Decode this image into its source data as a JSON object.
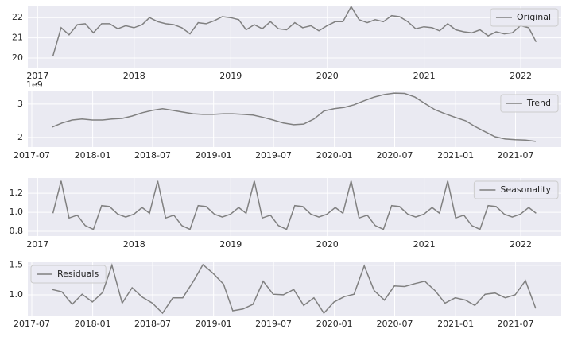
{
  "chart_data": [
    {
      "type": "line",
      "grid": true,
      "legend": "upper right",
      "x": [
        "2017-02",
        "2017-03",
        "2017-04",
        "2017-05",
        "2017-06",
        "2017-07",
        "2017-08",
        "2017-09",
        "2017-10",
        "2017-11",
        "2017-12",
        "2018-01",
        "2018-02",
        "2018-03",
        "2018-04",
        "2018-05",
        "2018-06",
        "2018-07",
        "2018-08",
        "2018-09",
        "2018-10",
        "2018-11",
        "2018-12",
        "2019-01",
        "2019-02",
        "2019-03",
        "2019-04",
        "2019-05",
        "2019-06",
        "2019-07",
        "2019-08",
        "2019-09",
        "2019-10",
        "2019-11",
        "2019-12",
        "2020-01",
        "2020-02",
        "2020-03",
        "2020-04",
        "2020-05",
        "2020-06",
        "2020-07",
        "2020-08",
        "2020-09",
        "2020-10",
        "2020-11",
        "2020-12",
        "2021-01",
        "2021-02",
        "2021-03",
        "2021-04",
        "2021-05",
        "2021-06",
        "2021-07",
        "2021-08",
        "2021-09",
        "2021-10",
        "2021-11",
        "2021-12",
        "2022-01",
        "2022-02"
      ],
      "series": [
        {
          "name": "Original",
          "color": "#808080",
          "values": [
            20.1,
            21.5,
            21.15,
            21.65,
            21.7,
            21.25,
            21.7,
            21.7,
            21.45,
            21.6,
            21.5,
            21.65,
            22.0,
            21.8,
            21.7,
            21.65,
            21.5,
            21.2,
            21.75,
            21.7,
            21.85,
            22.05,
            22.0,
            21.9,
            21.4,
            21.65,
            21.45,
            21.8,
            21.45,
            21.4,
            21.75,
            21.5,
            21.6,
            21.35,
            21.6,
            21.8,
            21.8,
            22.55,
            21.9,
            21.75,
            21.9,
            21.8,
            22.1,
            22.05,
            21.8,
            21.45,
            21.55,
            21.5,
            21.35,
            21.7,
            21.4,
            21.3,
            21.25,
            21.4,
            21.1,
            21.3,
            21.2,
            21.25,
            21.6,
            21.5,
            20.8
          ]
        }
      ],
      "xlim": [
        "2016-11-25",
        "2022-06-03"
      ],
      "xticks": [
        {
          "value": "2017-01",
          "label": "2017"
        },
        {
          "value": "2018-01",
          "label": "2018"
        },
        {
          "value": "2019-01",
          "label": "2019"
        },
        {
          "value": "2020-01",
          "label": "2020"
        },
        {
          "value": "2021-01",
          "label": "2021"
        },
        {
          "value": "2022-01",
          "label": "2022"
        }
      ],
      "ylim": [
        19.53,
        22.6
      ],
      "yticks": [
        20,
        21,
        22
      ]
    },
    {
      "type": "line",
      "grid": true,
      "legend": "upper right",
      "y_offset_label": "1e9",
      "x": [
        "2017-08",
        "2017-09",
        "2017-10",
        "2017-11",
        "2017-12",
        "2018-01",
        "2018-02",
        "2018-03",
        "2018-04",
        "2018-05",
        "2018-06",
        "2018-07",
        "2018-08",
        "2018-09",
        "2018-10",
        "2018-11",
        "2018-12",
        "2019-01",
        "2019-02",
        "2019-03",
        "2019-04",
        "2019-05",
        "2019-06",
        "2019-07",
        "2019-08",
        "2019-09",
        "2019-10",
        "2019-11",
        "2019-12",
        "2020-01",
        "2020-02",
        "2020-03",
        "2020-04",
        "2020-05",
        "2020-06",
        "2020-07",
        "2020-08",
        "2020-09",
        "2020-10",
        "2020-11",
        "2020-12",
        "2021-01",
        "2021-02",
        "2021-03",
        "2021-04",
        "2021-05",
        "2021-06",
        "2021-07",
        "2021-08"
      ],
      "series": [
        {
          "name": "Trend",
          "color": "#808080",
          "values": [
            2.31,
            2.43,
            2.52,
            2.55,
            2.52,
            2.52,
            2.55,
            2.57,
            2.64,
            2.74,
            2.81,
            2.86,
            2.81,
            2.76,
            2.71,
            2.69,
            2.69,
            2.71,
            2.71,
            2.69,
            2.67,
            2.6,
            2.52,
            2.43,
            2.38,
            2.4,
            2.55,
            2.79,
            2.86,
            2.9,
            2.98,
            3.1,
            3.21,
            3.29,
            3.33,
            3.32,
            3.21,
            3.02,
            2.83,
            2.71,
            2.6,
            2.5,
            2.33,
            2.17,
            2.02,
            1.95,
            1.93,
            1.92,
            1.88
          ]
        }
      ],
      "xlim": [
        "2017-06-19",
        "2021-11-16"
      ],
      "xticks": [
        "2017-07",
        "2018-01",
        "2018-07",
        "2019-01",
        "2019-07",
        "2020-01",
        "2020-07",
        "2021-01",
        "2021-07"
      ],
      "ylim": [
        1.71,
        3.38
      ],
      "yticks": [
        2,
        3
      ]
    },
    {
      "type": "line",
      "grid": true,
      "legend": "upper right",
      "x": [
        "2017-02",
        "2017-03",
        "2017-04",
        "2017-05",
        "2017-06",
        "2017-07",
        "2017-08",
        "2017-09",
        "2017-10",
        "2017-11",
        "2017-12",
        "2018-01",
        "2018-02",
        "2018-03",
        "2018-04",
        "2018-05",
        "2018-06",
        "2018-07",
        "2018-08",
        "2018-09",
        "2018-10",
        "2018-11",
        "2018-12",
        "2019-01",
        "2019-02",
        "2019-03",
        "2019-04",
        "2019-05",
        "2019-06",
        "2019-07",
        "2019-08",
        "2019-09",
        "2019-10",
        "2019-11",
        "2019-12",
        "2020-01",
        "2020-02",
        "2020-03",
        "2020-04",
        "2020-05",
        "2020-06",
        "2020-07",
        "2020-08",
        "2020-09",
        "2020-10",
        "2020-11",
        "2020-12",
        "2021-01",
        "2021-02",
        "2021-03",
        "2021-04",
        "2021-05",
        "2021-06",
        "2021-07",
        "2021-08",
        "2021-09",
        "2021-10",
        "2021-11",
        "2021-12",
        "2022-01",
        "2022-02"
      ],
      "series": [
        {
          "name": "Seasonality",
          "color": "#808080",
          "values": [
            0.99,
            1.33,
            0.94,
            0.97,
            0.86,
            0.82,
            1.07,
            1.06,
            0.98,
            0.95,
            0.98,
            1.05,
            0.99,
            1.33,
            0.94,
            0.97,
            0.86,
            0.82,
            1.07,
            1.06,
            0.98,
            0.95,
            0.98,
            1.05,
            0.99,
            1.33,
            0.94,
            0.97,
            0.86,
            0.82,
            1.07,
            1.06,
            0.98,
            0.95,
            0.98,
            1.05,
            0.99,
            1.33,
            0.94,
            0.97,
            0.86,
            0.82,
            1.07,
            1.06,
            0.98,
            0.95,
            0.98,
            1.05,
            0.99,
            1.33,
            0.94,
            0.97,
            0.86,
            0.82,
            1.07,
            1.06,
            0.98,
            0.95,
            0.98,
            1.05,
            0.99
          ]
        }
      ],
      "xlim": [
        "2016-11-25",
        "2022-06-03"
      ],
      "xticks": [
        {
          "value": "2017-01",
          "label": "2017"
        },
        {
          "value": "2018-01",
          "label": "2018"
        },
        {
          "value": "2019-01",
          "label": "2019"
        },
        {
          "value": "2020-01",
          "label": "2020"
        },
        {
          "value": "2021-01",
          "label": "2021"
        },
        {
          "value": "2022-01",
          "label": "2022"
        }
      ],
      "ylim": [
        0.75,
        1.36
      ],
      "yticks": [
        0.8,
        {
          "value": 1,
          "label": "1.0"
        },
        1.2
      ]
    },
    {
      "type": "line",
      "grid": true,
      "legend": "upper left",
      "x": [
        "2017-08",
        "2017-09",
        "2017-10",
        "2017-11",
        "2017-12",
        "2018-01",
        "2018-02",
        "2018-03",
        "2018-04",
        "2018-05",
        "2018-06",
        "2018-07",
        "2018-08",
        "2018-09",
        "2018-10",
        "2018-11",
        "2018-12",
        "2019-01",
        "2019-02",
        "2019-03",
        "2019-04",
        "2019-05",
        "2019-06",
        "2019-07",
        "2019-08",
        "2019-09",
        "2019-10",
        "2019-11",
        "2019-12",
        "2020-01",
        "2020-02",
        "2020-03",
        "2020-04",
        "2020-05",
        "2020-06",
        "2020-07",
        "2020-08",
        "2020-09",
        "2020-10",
        "2020-11",
        "2020-12",
        "2021-01",
        "2021-02",
        "2021-03",
        "2021-04",
        "2021-05",
        "2021-06",
        "2021-07",
        "2021-08"
      ],
      "series": [
        {
          "name": "Residuals",
          "color": "#808080",
          "values": [
            1.09,
            1.05,
            0.84,
            1.01,
            0.88,
            1.04,
            1.5,
            0.86,
            1.12,
            0.96,
            0.86,
            0.69,
            0.95,
            0.95,
            1.22,
            1.51,
            1.36,
            1.18,
            0.73,
            0.76,
            0.84,
            1.23,
            1.01,
            1.0,
            1.09,
            0.82,
            0.95,
            0.69,
            0.88,
            0.97,
            1.01,
            1.49,
            1.07,
            0.91,
            1.15,
            1.14,
            1.19,
            1.23,
            1.07,
            0.86,
            0.95,
            0.91,
            0.82,
            1.01,
            1.03,
            0.95,
            1.0,
            1.24,
            0.77
          ]
        }
      ],
      "xlim": [
        "2017-06-19",
        "2021-11-16"
      ],
      "xticks": [
        "2017-07",
        "2018-01",
        "2018-07",
        "2019-01",
        "2019-07",
        "2020-01",
        "2020-07",
        "2021-01",
        "2021-07"
      ],
      "ylim": [
        0.65,
        1.55
      ],
      "yticks": [
        {
          "value": 1,
          "label": "1.0"
        },
        1.5
      ]
    }
  ]
}
